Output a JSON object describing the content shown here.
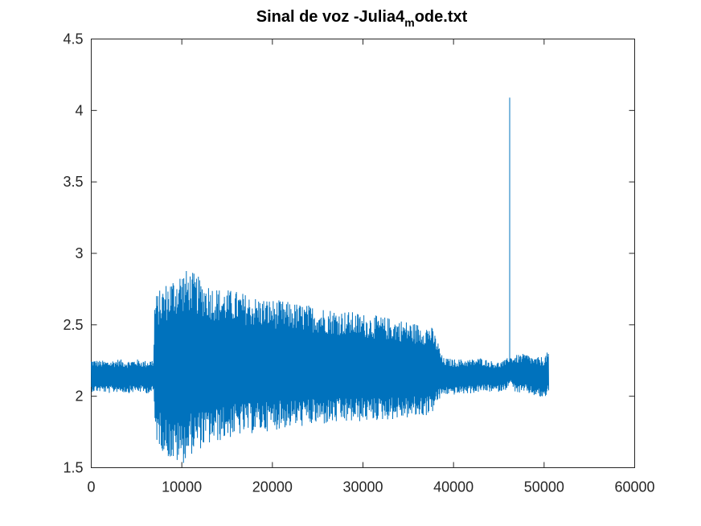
{
  "chart_data": {
    "type": "line",
    "title": {
      "prefix": "Sinal de voz -Julia4",
      "subscript": "m",
      "suffix": "ode.txt"
    },
    "xlabel": "",
    "ylabel": "",
    "xlim": [
      0,
      60000
    ],
    "ylim": [
      1.5,
      4.5
    ],
    "xticks": [
      "0",
      "10000",
      "20000",
      "30000",
      "40000",
      "50000",
      "60000"
    ],
    "xtick_values": [
      0,
      10000,
      20000,
      30000,
      40000,
      50000,
      60000
    ],
    "yticks": [
      "1.5",
      "2",
      "2.5",
      "3",
      "3.5",
      "4",
      "4.5"
    ],
    "ytick_values": [
      1.5,
      2,
      2.5,
      3,
      3.5,
      4,
      4.5
    ],
    "grid": false,
    "line_color": "#0072BD",
    "series": [
      {
        "x": [
          0,
          1000,
          2000,
          3000,
          4000,
          5000,
          6000,
          6900,
          7000,
          8000,
          9000,
          10000,
          11000,
          12000,
          14000,
          16000,
          18000,
          20000,
          22000,
          24000,
          26000,
          28000,
          30000,
          32000,
          34000,
          36000,
          37500,
          38200,
          38800,
          40000,
          42000,
          43000,
          44000,
          45000,
          46000,
          46200,
          46400,
          47000,
          48000,
          49000,
          50000,
          50500
        ],
        "upper": [
          2.26,
          2.25,
          2.25,
          2.26,
          2.25,
          2.26,
          2.25,
          2.26,
          2.7,
          2.78,
          2.84,
          2.89,
          2.88,
          2.83,
          2.76,
          2.74,
          2.7,
          2.68,
          2.66,
          2.64,
          2.62,
          2.6,
          2.58,
          2.56,
          2.54,
          2.51,
          2.5,
          2.4,
          2.27,
          2.26,
          2.26,
          2.27,
          2.25,
          2.24,
          2.26,
          4.09,
          2.28,
          2.29,
          2.3,
          2.27,
          2.28,
          2.32
        ],
        "lower": [
          2.03,
          2.03,
          2.02,
          2.03,
          2.02,
          2.03,
          2.02,
          2.02,
          1.7,
          1.6,
          1.53,
          1.52,
          1.59,
          1.63,
          1.68,
          1.72,
          1.74,
          1.76,
          1.78,
          1.79,
          1.8,
          1.81,
          1.82,
          1.83,
          1.84,
          1.85,
          1.87,
          1.95,
          2.01,
          2.01,
          2.02,
          2.03,
          2.03,
          2.03,
          2.05,
          2.08,
          2.05,
          2.02,
          2.02,
          2.0,
          1.98,
          2.02
        ]
      }
    ]
  }
}
